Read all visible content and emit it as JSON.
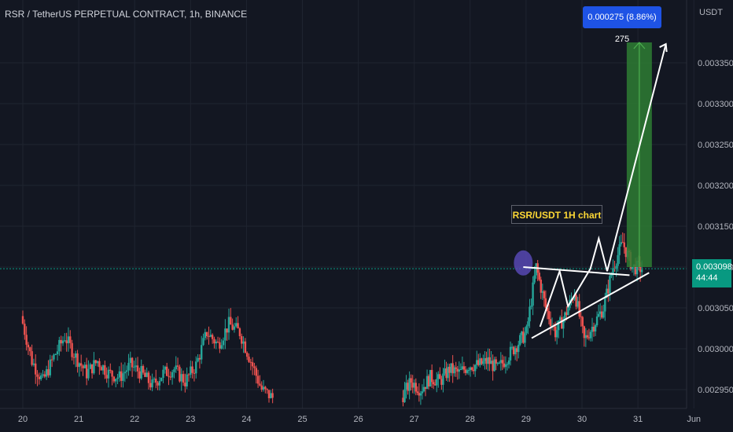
{
  "header": {
    "symbol_title": "RSR / TetherUS PERPETUAL CONTRACT, 1h, BINANCE",
    "currency": "USDT"
  },
  "price_badge": {
    "price": "0.003098",
    "countdown": "44:44"
  },
  "measure": {
    "label": "0.000275 (8.86%) 275"
  },
  "annotation": {
    "label": "RSR/USDT 1H chart"
  },
  "colors": {
    "background": "#131722",
    "up": "#26a69a",
    "down": "#ef5350",
    "target_zone": "#2e7d32",
    "measure_box": "#1e53e5",
    "label_text": "#fdd835",
    "drawing": "#ffffff",
    "highlight": "#5b4bbd"
  },
  "chart_data": {
    "type": "candlestick",
    "x_axis": {
      "ticks": [
        "20",
        "21",
        "22",
        "23",
        "24",
        "25",
        "26",
        "27",
        "28",
        "29",
        "30",
        "31",
        "Jun"
      ]
    },
    "y_axis": {
      "ticks": [
        "0.003350",
        "0.003300",
        "0.003250",
        "0.003200",
        "0.003150",
        "0.003100",
        "0.003050",
        "0.003000",
        "0.002950"
      ],
      "range": [
        0.002935,
        0.00338
      ]
    },
    "last_price": 0.003098,
    "target": {
      "from": 0.0031,
      "to": 0.003375
    },
    "pattern_lines": [
      {
        "from": [
          "29",
          0.0031
        ],
        "to": [
          "30.8",
          0.00309
        ]
      },
      {
        "from": [
          "29.1",
          0.003015
        ],
        "to": [
          "31.2",
          0.00309
        ]
      }
    ],
    "segments": [
      {
        "start_day": 20.0,
        "end_day": 24.5,
        "closes": [
          0.00304,
          0.002985,
          0.00296,
          0.00299,
          0.003015,
          0.00299,
          0.00297,
          0.002985,
          0.00297,
          0.002965,
          0.00298,
          0.00297,
          0.002955,
          0.00297,
          0.002975,
          0.00296,
          0.00298,
          0.00302,
          0.003005,
          0.00303,
          0.00302,
          0.002985,
          0.00295,
          0.00294
        ]
      },
      {
        "start_day": 26.8,
        "end_day": 31.1,
        "closes": [
          0.00294,
          0.00296,
          0.00295,
          0.002965,
          0.00296,
          0.002975,
          0.00297,
          0.00298,
          0.00298,
          0.002985,
          0.002975,
          0.00299,
          0.003005,
          0.00302,
          0.0031,
          0.00305,
          0.00302,
          0.00304,
          0.00307,
          0.00301,
          0.00303,
          0.00305,
          0.0031,
          0.00313,
          0.0031,
          0.003098
        ]
      }
    ]
  }
}
